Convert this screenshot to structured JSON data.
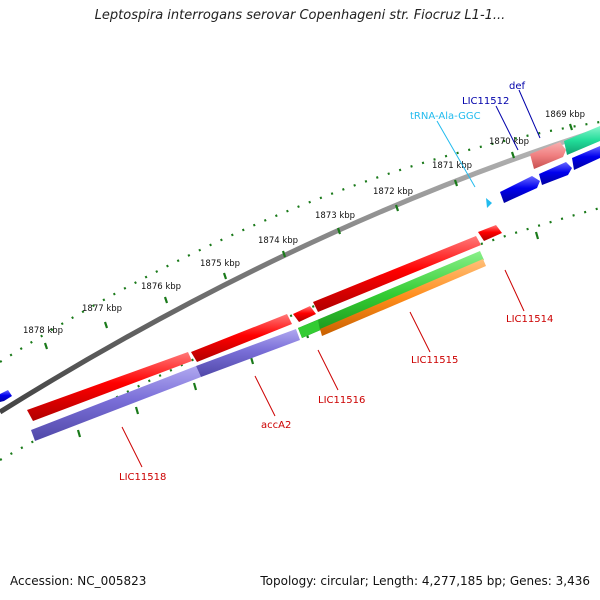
{
  "title": "Leptospira interrogans serovar Copenhageni str. Fiocruz L1-1...",
  "footer": {
    "accession": "Accession: NC_005823",
    "summary": "Topology: circular; Length: 4,277,185 bp; Genes: 3,436"
  },
  "colors": {
    "backbone": "#7a7a7a",
    "tick": "#1a7a1a",
    "forward_cds": "#ff0000",
    "reverse_cds": "#7a6fd8",
    "rrna_forward": "#2a2ae8",
    "trna": "#22bbee",
    "gene_green": "#33cc33",
    "gene_orange": "#ff8c1a",
    "gene_teal": "#22dd99",
    "gene_pink": "#f07f80",
    "label_red": "#cc0000",
    "label_blue": "#0000aa"
  },
  "scale_labels": [
    "1869 kbp",
    "1870 kbp",
    "1871 kbp",
    "1872 kbp",
    "1873 kbp",
    "1874 kbp",
    "1875 kbp",
    "1876 kbp",
    "1877 kbp",
    "1878 kbp"
  ],
  "gene_labels": [
    {
      "name": "def",
      "color": "blue"
    },
    {
      "name": "LIC11512",
      "color": "blue"
    },
    {
      "name": "tRNA-Ala-GGC",
      "color": "cyan"
    },
    {
      "name": "LIC11514",
      "color": "red"
    },
    {
      "name": "LIC11515",
      "color": "red"
    },
    {
      "name": "LIC11516",
      "color": "red"
    },
    {
      "name": "accA2",
      "color": "red"
    },
    {
      "name": "LIC11518",
      "color": "red"
    }
  ]
}
